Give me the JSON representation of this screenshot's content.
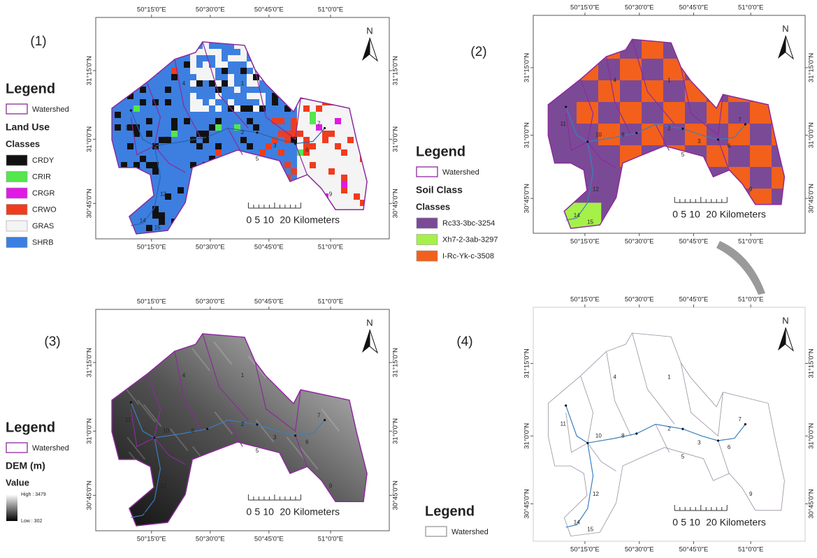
{
  "panels": [
    {
      "label": "(1)",
      "top_ticks": [
        "50°15'0\"E",
        "50°30'0\"E",
        "50°45'0\"E",
        "51°0'0\"E"
      ],
      "bottom_ticks": [
        "50°15'0\"E",
        "50°30'0\"E",
        "50°45'0\"E",
        "51°0'0\"E"
      ],
      "left_ticks": [
        "31°15'0\"N",
        "31°0'0\"N",
        "30°45'0\"N"
      ],
      "right_ticks": [
        "31°15'0\"N",
        "31°0'0\"N",
        "30°45'0\"N"
      ],
      "north": "N",
      "scale": [
        "0",
        "5",
        "10",
        "20 Kilometers"
      ],
      "subbasins": [
        "4",
        "1",
        "11",
        "10",
        "8",
        "2",
        "3",
        "7",
        "5",
        "6",
        "9",
        "12",
        "14",
        "15"
      ],
      "legend": {
        "title": "Legend",
        "watershed": "Watershed",
        "heading": "Land Use",
        "subheading": "Classes",
        "items": [
          {
            "label": "CRDY",
            "color": "#111111"
          },
          {
            "label": "CRIR",
            "color": "#55e64e"
          },
          {
            "label": "CRGR",
            "color": "#e019e6"
          },
          {
            "label": "CRWO",
            "color": "#f03c1e"
          },
          {
            "label": "GRAS",
            "color": "#f4f4f4"
          },
          {
            "label": "SHRB",
            "color": "#3c7fe0"
          }
        ]
      }
    },
    {
      "label": "(2)",
      "top_ticks": [
        "50°15'0\"E",
        "50°30'0\"E",
        "50°45'0\"E",
        "51°0'0\"E"
      ],
      "bottom_ticks": [
        "50°15'0\"E",
        "50°30'0\"E",
        "50°45'0\"E",
        "51°0'0\"E"
      ],
      "left_ticks": [
        "31°15'0\"N",
        "31°0'0\"N",
        "30°45'0\"N"
      ],
      "right_ticks": [
        "31°15'0\"N",
        "31°0'0\"N",
        "30°45'0\"N"
      ],
      "north": "N",
      "scale": [
        "0",
        "5",
        "10",
        "20 Kilometers"
      ],
      "subbasins": [
        "4",
        "1",
        "11",
        "10",
        "8",
        "2",
        "3",
        "7",
        "5",
        "6",
        "9",
        "12",
        "14",
        "15"
      ],
      "legend": {
        "title": "Legend",
        "watershed": "Watershed",
        "heading": "Soil Class",
        "subheading": "Classes",
        "items": [
          {
            "label": "Rc33-3bc-3254",
            "color": "#7b4a96"
          },
          {
            "label": "Xh7-2-3ab-3297",
            "color": "#a6f04a"
          },
          {
            "label": "I-Rc-Yk-c-3508",
            "color": "#f2601c"
          }
        ]
      }
    },
    {
      "label": "(3)",
      "top_ticks": [
        "50°15'0\"E",
        "50°30'0\"E",
        "50°45'0\"E",
        "51°0'0\"E"
      ],
      "bottom_ticks": [
        "50°15'0\"E",
        "50°30'0\"E",
        "50°45'0\"E",
        "51°0'0\"E"
      ],
      "left_ticks": [
        "31°15'0\"N",
        "31°0'0\"N",
        "30°45'0\"N"
      ],
      "right_ticks": [
        "31°15'0\"N",
        "31°0'0\"N",
        "30°45'0\"N"
      ],
      "north": "N",
      "scale": [
        "0",
        "5",
        "10",
        "20 Kilometers"
      ],
      "subbasins": [
        "4",
        "1",
        "11",
        "10",
        "8",
        "2",
        "3",
        "7",
        "5",
        "6",
        "9",
        "12",
        "14",
        "15"
      ],
      "legend": {
        "title": "Legend",
        "watershed": "Watershed",
        "heading": "DEM (m)",
        "subheading": "Value",
        "high": "High : 3479",
        "low": "Low : 302"
      }
    },
    {
      "label": "(4)",
      "top_ticks": [
        "50°15'0\"E",
        "50°30'0\"E",
        "50°45'0\"E",
        "51°0'0\"E"
      ],
      "bottom_ticks": [
        "50°15'0\"E",
        "50°30'0\"E",
        "50°45'0\"E",
        "51°0'0\"E"
      ],
      "left_ticks": [
        "31°15'0\"N",
        "31°0'0\"N",
        "30°45'0\"N"
      ],
      "right_ticks": [
        "31°15'0\"N",
        "31°0'0\"N",
        "30°45'0\"N"
      ],
      "north": "N",
      "scale": [
        "0",
        "5",
        "10",
        "20 Kilometers"
      ],
      "subbasins": [
        "4",
        "1",
        "11",
        "10",
        "8",
        "2",
        "3",
        "7",
        "5",
        "6",
        "9",
        "12",
        "14",
        "15"
      ],
      "legend": {
        "title": "Legend",
        "watershed": "Watershed"
      }
    }
  ]
}
